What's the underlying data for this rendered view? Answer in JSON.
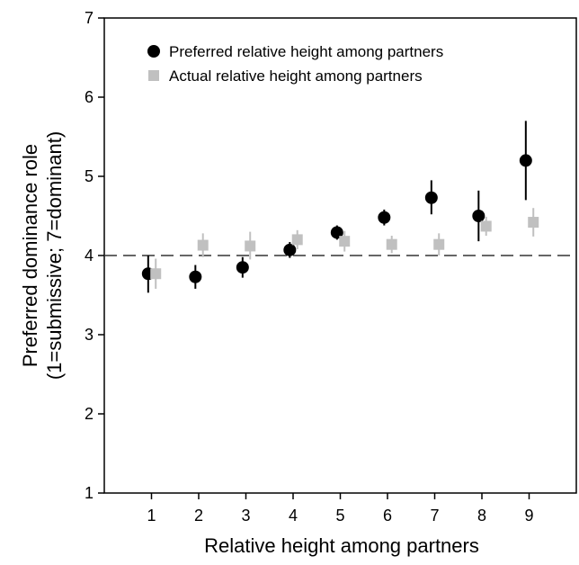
{
  "chart_data": {
    "type": "scatter",
    "title": "",
    "xlabel": "Relative height among partners",
    "ylabel": [
      "Preferred dominance role",
      "(1=submissive; 7=dominant)"
    ],
    "xlim": [
      0.0,
      10.0
    ],
    "ylim": [
      1,
      7
    ],
    "x_ticks": [
      1,
      2,
      3,
      4,
      5,
      6,
      7,
      8,
      9
    ],
    "y_ticks": [
      1,
      2,
      3,
      4,
      5,
      6,
      7
    ],
    "reference_line": {
      "y": 4,
      "style": "dashed",
      "color": "#333333"
    },
    "grid": false,
    "legend_position": "top-left",
    "series": [
      {
        "name": "Preferred relative height among partners",
        "marker": "circle",
        "color": "#000000",
        "x": [
          1,
          2,
          3,
          4,
          5,
          6,
          7,
          8,
          9
        ],
        "y": [
          3.77,
          3.73,
          3.85,
          4.07,
          4.29,
          4.48,
          4.73,
          4.5,
          5.2
        ],
        "err_low": [
          3.53,
          3.58,
          3.72,
          3.97,
          4.2,
          4.38,
          4.52,
          4.18,
          4.7
        ],
        "err_high": [
          4.0,
          3.88,
          3.98,
          4.17,
          4.38,
          4.58,
          4.95,
          4.82,
          5.7
        ]
      },
      {
        "name": "Actual relative height among partners",
        "marker": "square",
        "color": "#c0c0c0",
        "x": [
          1,
          2,
          3,
          4,
          5,
          6,
          7,
          8,
          9
        ],
        "y": [
          3.77,
          4.13,
          4.12,
          4.2,
          4.18,
          4.14,
          4.14,
          4.37,
          4.42
        ],
        "err_low": [
          3.58,
          3.98,
          3.95,
          4.08,
          4.05,
          4.03,
          4.0,
          4.25,
          4.24
        ],
        "err_high": [
          3.96,
          4.28,
          4.3,
          4.32,
          4.31,
          4.25,
          4.28,
          4.49,
          4.6
        ]
      }
    ]
  }
}
